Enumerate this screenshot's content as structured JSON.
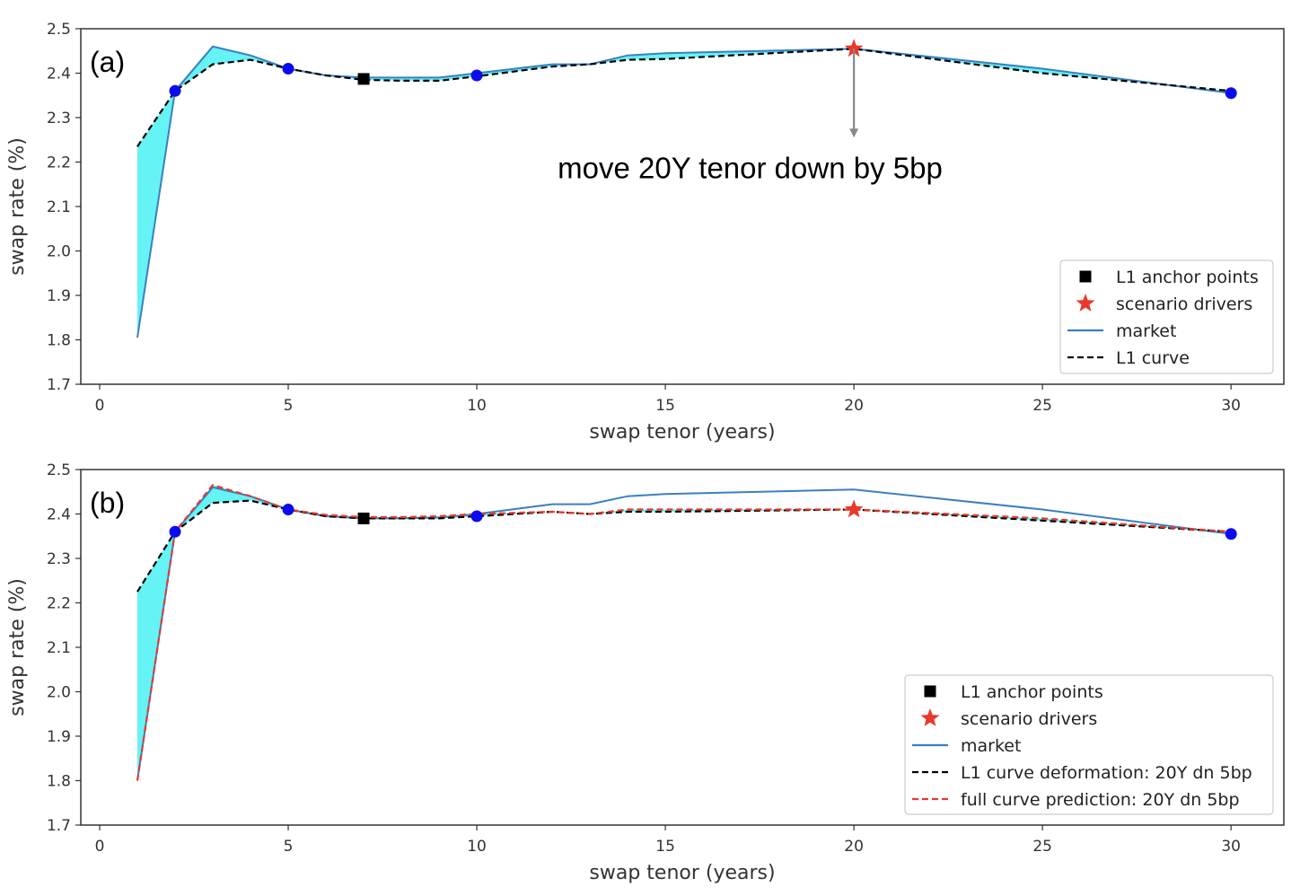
{
  "chart_data": [
    {
      "type": "line",
      "panel_label": "(a)",
      "xlabel": "swap tenor (years)",
      "ylabel": "swap rate (%)",
      "xlim": [
        -0.5,
        31.4
      ],
      "ylim": [
        1.7,
        2.5
      ],
      "x_ticks": [
        0,
        5,
        10,
        15,
        20,
        25,
        30
      ],
      "y_ticks": [
        1.7,
        1.8,
        1.9,
        2.0,
        2.1,
        2.2,
        2.3,
        2.4,
        2.5
      ],
      "x_tick_labels": [
        "0",
        "5",
        "10",
        "15",
        "20",
        "25",
        "30"
      ],
      "y_tick_labels": [
        "1.7",
        "1.8",
        "1.9",
        "2.0",
        "2.1",
        "2.2",
        "2.3",
        "2.4",
        "2.5"
      ],
      "grid": false,
      "legend_position": "lower-right",
      "fill_between": {
        "between": [
          "market",
          "L1 curve"
        ],
        "color": "#66f3f5"
      },
      "series": [
        {
          "name": "market",
          "style": "solid",
          "color": "#3a7fc1",
          "x": [
            1,
            2,
            3,
            4,
            5,
            6,
            7,
            8,
            9,
            10,
            12,
            13,
            14,
            15,
            20,
            25,
            30
          ],
          "y": [
            1.805,
            2.36,
            2.46,
            2.44,
            2.41,
            2.395,
            2.39,
            2.39,
            2.39,
            2.4,
            2.42,
            2.42,
            2.44,
            2.445,
            2.455,
            2.41,
            2.355
          ]
        },
        {
          "name": "L1 curve",
          "style": "dashed",
          "color": "#000000",
          "x": [
            1,
            2,
            3,
            4,
            5,
            6,
            7,
            8,
            9,
            10,
            12,
            13,
            14,
            15,
            20,
            25,
            30
          ],
          "y": [
            2.235,
            2.36,
            2.42,
            2.43,
            2.41,
            2.395,
            2.385,
            2.383,
            2.383,
            2.393,
            2.415,
            2.42,
            2.43,
            2.432,
            2.455,
            2.4,
            2.36
          ]
        }
      ],
      "points": {
        "blue": {
          "x": [
            2,
            5,
            10,
            30
          ],
          "y": [
            2.36,
            2.41,
            2.395,
            2.355
          ],
          "color": "#0b0bf0"
        },
        "anchor": {
          "name": "L1 anchor points",
          "x": [
            7
          ],
          "y": [
            2.387
          ],
          "color": "#000000"
        },
        "driver": {
          "name": "scenario drivers",
          "x": [
            20
          ],
          "y": [
            2.455
          ],
          "color": "#e8382b"
        }
      },
      "annotation": {
        "text": "move 20Y tenor down by 5bp",
        "arrow_x": 20,
        "arrow_from_y": 2.455,
        "arrow_to_y": 2.255
      }
    },
    {
      "type": "line",
      "panel_label": "(b)",
      "xlabel": "swap tenor (years)",
      "ylabel": "swap rate (%)",
      "xlim": [
        -0.5,
        31.4
      ],
      "ylim": [
        1.7,
        2.5
      ],
      "x_ticks": [
        0,
        5,
        10,
        15,
        20,
        25,
        30
      ],
      "y_ticks": [
        1.7,
        1.8,
        1.9,
        2.0,
        2.1,
        2.2,
        2.3,
        2.4,
        2.5
      ],
      "x_tick_labels": [
        "0",
        "5",
        "10",
        "15",
        "20",
        "25",
        "30"
      ],
      "y_tick_labels": [
        "1.7",
        "1.8",
        "1.9",
        "2.0",
        "2.1",
        "2.2",
        "2.3",
        "2.4",
        "2.5"
      ],
      "grid": false,
      "legend_position": "lower-right",
      "fill_between": {
        "between": [
          "full curve prediction: 20Y dn 5bp",
          "L1 curve deformation: 20Y dn 5bp"
        ],
        "color": "#66f3f5"
      },
      "series": [
        {
          "name": "market",
          "style": "solid",
          "color": "#3a7fc1",
          "x": [
            1,
            2,
            3,
            4,
            5,
            6,
            7,
            8,
            9,
            10,
            12,
            13,
            14,
            15,
            20,
            25,
            30
          ],
          "y": [
            1.8,
            2.36,
            2.46,
            2.44,
            2.41,
            2.395,
            2.39,
            2.39,
            2.392,
            2.4,
            2.422,
            2.422,
            2.44,
            2.445,
            2.455,
            2.41,
            2.355
          ]
        },
        {
          "name": "L1 curve deformation: 20Y dn 5bp",
          "style": "dashed",
          "color": "#000000",
          "x": [
            1,
            2,
            3,
            4,
            5,
            6,
            7,
            8,
            9,
            10,
            12,
            13,
            14,
            15,
            20,
            25,
            30
          ],
          "y": [
            2.225,
            2.36,
            2.425,
            2.43,
            2.41,
            2.395,
            2.39,
            2.39,
            2.39,
            2.395,
            2.405,
            2.4,
            2.405,
            2.405,
            2.41,
            2.385,
            2.36
          ]
        },
        {
          "name": "full curve prediction: 20Y dn 5bp",
          "style": "dashed",
          "color": "#e8382b",
          "x": [
            1,
            2,
            3,
            4,
            5,
            6,
            7,
            8,
            9,
            10,
            12,
            13,
            14,
            15,
            20,
            25,
            30
          ],
          "y": [
            1.8,
            2.36,
            2.465,
            2.44,
            2.41,
            2.398,
            2.393,
            2.393,
            2.395,
            2.4,
            2.405,
            2.4,
            2.41,
            2.41,
            2.41,
            2.39,
            2.36
          ]
        }
      ],
      "points": {
        "blue": {
          "x": [
            2,
            5,
            10,
            30
          ],
          "y": [
            2.36,
            2.41,
            2.395,
            2.355
          ],
          "color": "#0b0bf0"
        },
        "anchor": {
          "name": "L1 anchor points",
          "x": [
            7
          ],
          "y": [
            2.39
          ],
          "color": "#000000"
        },
        "driver": {
          "name": "scenario drivers",
          "x": [
            20
          ],
          "y": [
            2.41
          ],
          "color": "#e8382b"
        }
      }
    }
  ]
}
